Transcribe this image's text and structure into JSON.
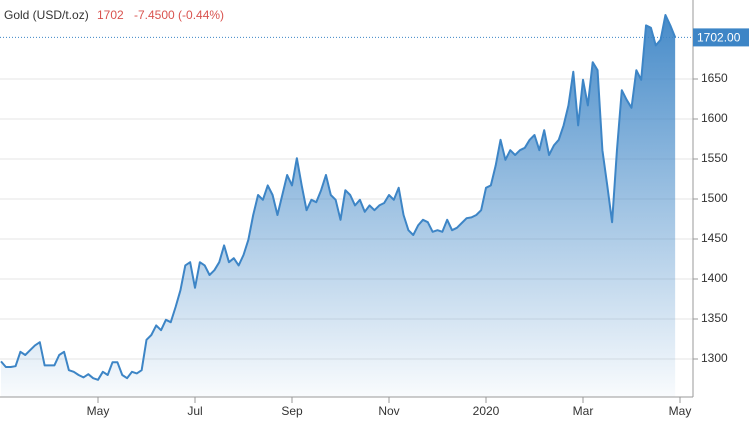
{
  "header": {
    "name": "Gold (USD/t.oz)",
    "price": "1702",
    "change": "-7.4500 (-0.44%)"
  },
  "chart_data": {
    "type": "area",
    "categories": [
      null,
      null,
      null,
      null,
      null,
      null,
      null,
      null,
      null,
      null,
      null,
      null,
      null,
      null,
      null,
      null,
      null,
      null,
      null,
      null,
      "May",
      null,
      null,
      null,
      null,
      null,
      null,
      null,
      null,
      null,
      null,
      null,
      null,
      null,
      null,
      null,
      null,
      null,
      null,
      null,
      "Jul",
      null,
      null,
      null,
      null,
      null,
      null,
      null,
      null,
      null,
      null,
      null,
      null,
      null,
      null,
      null,
      null,
      null,
      null,
      null,
      "Sep",
      null,
      null,
      null,
      null,
      null,
      null,
      null,
      null,
      null,
      null,
      null,
      null,
      null,
      null,
      null,
      null,
      null,
      null,
      null,
      "Nov",
      null,
      null,
      null,
      null,
      null,
      null,
      null,
      null,
      null,
      null,
      null,
      null,
      null,
      null,
      null,
      null,
      null,
      null,
      null,
      "2020",
      null,
      null,
      null,
      null,
      null,
      null,
      null,
      null,
      null,
      null,
      null,
      null,
      null,
      null,
      null,
      null,
      null,
      null,
      null,
      "Mar",
      null,
      null,
      null,
      null,
      null,
      null,
      null,
      null,
      null,
      null,
      null,
      null,
      null,
      null,
      null,
      null,
      null,
      null,
      null,
      "May"
    ],
    "values": [
      1297,
      1290,
      1290,
      1291,
      1309,
      1305,
      1311,
      1317,
      1321,
      1292,
      1292,
      1292,
      1305,
      1309,
      1286,
      1284,
      1280,
      1277,
      1281,
      1276,
      1274,
      1284,
      1280,
      1296,
      1296,
      1280,
      1276,
      1284,
      1282,
      1286,
      1324,
      1330,
      1342,
      1336,
      1349,
      1346,
      1365,
      1386,
      1417,
      1421,
      1389,
      1421,
      1417,
      1405,
      1411,
      1421,
      1442,
      1421,
      1426,
      1417,
      1430,
      1449,
      1480,
      1505,
      1499,
      1517,
      1505,
      1480,
      1505,
      1530,
      1517,
      1551,
      1517,
      1486,
      1499,
      1496,
      1511,
      1530,
      1505,
      1499,
      1474,
      1511,
      1505,
      1492,
      1499,
      1484,
      1492,
      1486,
      1492,
      1495,
      1505,
      1499,
      1514,
      1480,
      1461,
      1455,
      1467,
      1474,
      1471,
      1459,
      1461,
      1459,
      1474,
      1461,
      1464,
      1470,
      1476,
      1477,
      1480,
      1486,
      1514,
      1517,
      1542,
      1574,
      1549,
      1561,
      1555,
      1561,
      1564,
      1574,
      1580,
      1561,
      1586,
      1555,
      1567,
      1574,
      1592,
      1617,
      1659,
      1592,
      1649,
      1617,
      1671,
      1661,
      1561,
      1517,
      1471,
      1561,
      1636,
      1624,
      1614,
      1661,
      1649,
      1717,
      1714,
      1692,
      1699,
      1730,
      1717,
      1702,
      null
    ],
    "color": "#3d85c6",
    "ylim": [
      1252.5,
      1748.75
    ],
    "yticks": [
      1300,
      1350,
      1400,
      1450,
      1500,
      1550,
      1600,
      1650
    ],
    "grid": true,
    "reference_line": {
      "value": 1702,
      "label": "1702.00"
    }
  }
}
